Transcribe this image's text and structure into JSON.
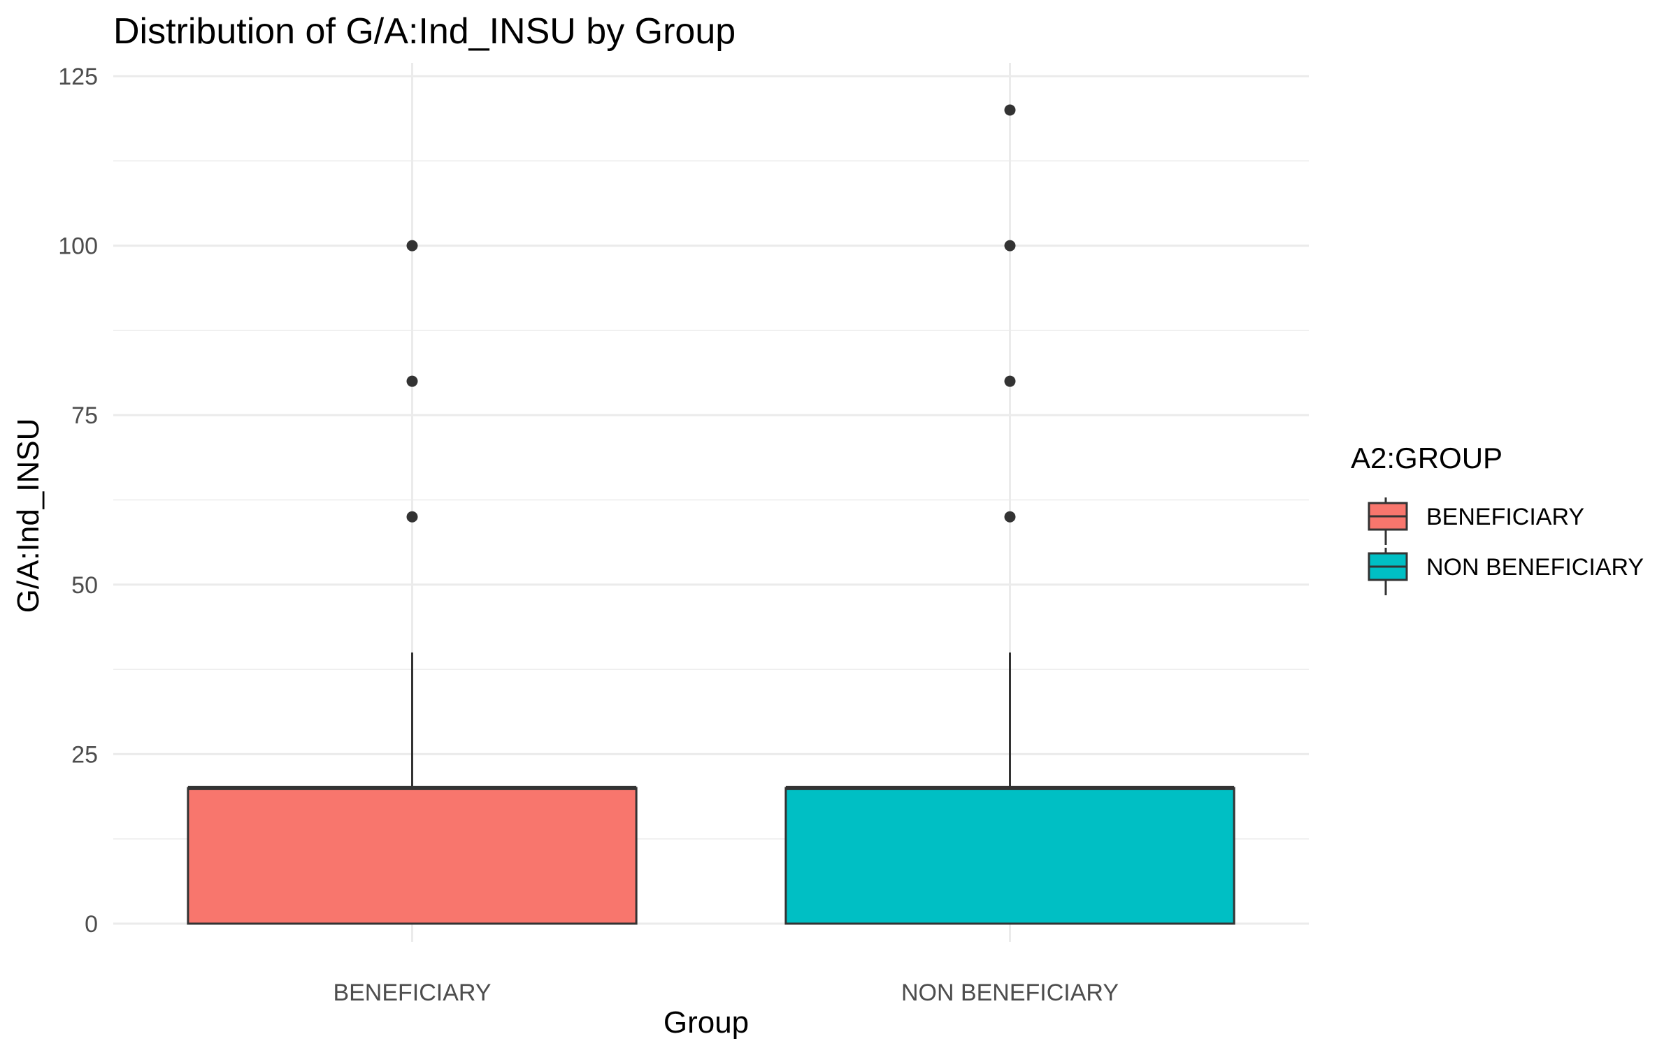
{
  "chart_data": {
    "type": "box",
    "title": "Distribution of G/A:Ind_INSU by Group",
    "xlabel": "Group",
    "ylabel": "G/A:Ind_INSU",
    "ylim": [
      0,
      125
    ],
    "yticks": [
      0,
      25,
      50,
      75,
      100,
      125
    ],
    "grid": true,
    "legend": {
      "title": "A2:GROUP",
      "placement": "right",
      "entries": [
        "BENEFICIARY",
        "NON BENEFICIARY"
      ]
    },
    "categories": [
      "BENEFICIARY",
      "NON BENEFICIARY"
    ],
    "series": [
      {
        "name": "BENEFICIARY",
        "color": "#F8766D",
        "q1": 0,
        "median": 20,
        "q3": 20,
        "whisker_low": 0,
        "whisker_high": 40,
        "outliers": [
          60,
          80,
          100
        ]
      },
      {
        "name": "NON BENEFICIARY",
        "color": "#00BFC4",
        "q1": 0,
        "median": 20,
        "q3": 20,
        "whisker_low": 0,
        "whisker_high": 40,
        "outliers": [
          60,
          80,
          100,
          120
        ]
      }
    ]
  }
}
